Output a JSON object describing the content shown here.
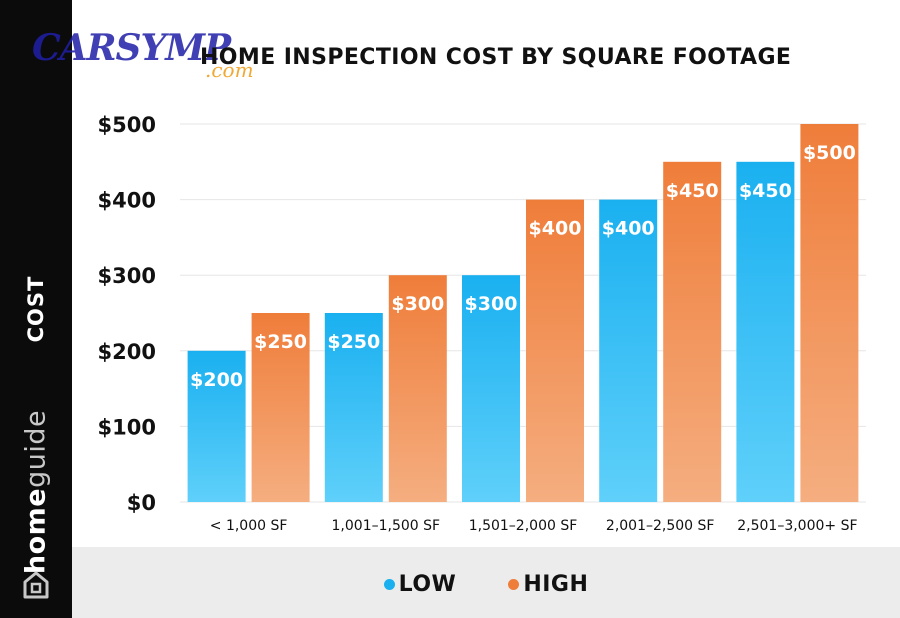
{
  "title": "HOME INSPECTION COST BY SQUARE FOOTAGE",
  "watermark": {
    "text": "CARSYMP",
    "sub": ".com"
  },
  "sidebar": {
    "axis_label": "COST",
    "brand_bold": "home",
    "brand_light": "guide",
    "brand_icon": "homeguide-house-icon"
  },
  "colors": {
    "low": "#1ab0f0",
    "low_light": "#5fd0fa",
    "high": "#ef7d3a",
    "high_light": "#f5ae80",
    "sidebar": "#0b0b0b",
    "grid": "#e6e6e6",
    "legend_band": "#ececec"
  },
  "legend": {
    "low_label": "LOW",
    "high_label": "HIGH"
  },
  "chart_data": {
    "type": "bar",
    "title": "HOME INSPECTION COST BY SQUARE FOOTAGE",
    "xlabel": "",
    "ylabel": "COST",
    "categories": [
      "< 1,000 SF",
      "1,001–1,500 SF",
      "1,501–2,000 SF",
      "2,001–2,500 SF",
      "2,501–3,000+ SF"
    ],
    "series": [
      {
        "name": "LOW",
        "values": [
          200,
          250,
          300,
          400,
          450
        ],
        "labels": [
          "$200",
          "$250",
          "$300",
          "$400",
          "$450"
        ]
      },
      {
        "name": "HIGH",
        "values": [
          250,
          300,
          400,
          450,
          500
        ],
        "labels": [
          "$250",
          "$300",
          "$400",
          "$450",
          "$500"
        ]
      }
    ],
    "ylim": [
      0,
      500
    ],
    "yticks": [
      0,
      100,
      200,
      300,
      400,
      500
    ],
    "ytick_labels": [
      "$0",
      "$100",
      "$200",
      "$300",
      "$400",
      "$500"
    ],
    "grid": true,
    "legend_position": "bottom"
  }
}
